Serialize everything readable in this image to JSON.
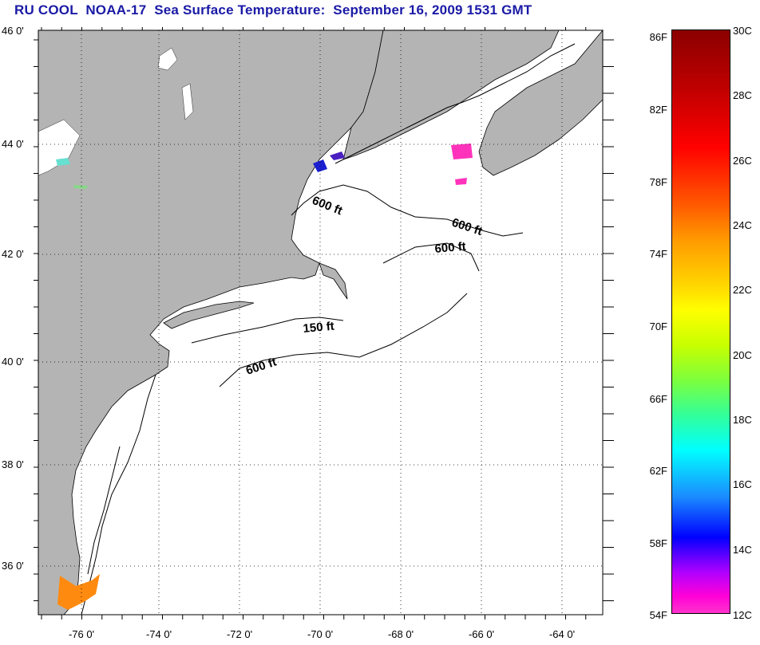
{
  "title": "RU COOL  NOAA-17  Sea Surface Temperature:  September 16, 2009 1531 GMT",
  "colors": {
    "land": "#b4b4b4",
    "water": "#ffffff",
    "title": "#1a1aa6",
    "grid": "#000000"
  },
  "lat_labels": [
    "46 0'",
    "44 0'",
    "42 0'",
    "40 0'",
    "38 0'",
    "36 0'"
  ],
  "lon_labels": [
    "-76 0'",
    "-74 0'",
    "-72 0'",
    "-70 0'",
    "-68 0'",
    "-66 0'",
    "-64 0'"
  ],
  "contour_labels": [
    "600 ft",
    "600 ft",
    "600 ft",
    "150 ft",
    "600 ft"
  ],
  "colorbar": {
    "fahrenheit": [
      "86F",
      "82F",
      "78F",
      "74F",
      "70F",
      "66F",
      "62F",
      "58F",
      "54F"
    ],
    "celsius": [
      "30C",
      "28C",
      "26C",
      "24C",
      "22C",
      "20C",
      "18C",
      "16C",
      "14C",
      "12C"
    ]
  }
}
